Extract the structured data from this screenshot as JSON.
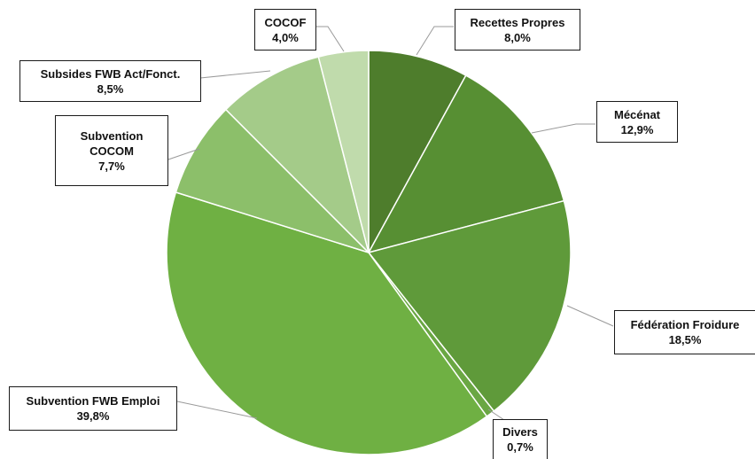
{
  "chart_data": {
    "type": "pie",
    "title": "",
    "start_angle_deg": 0,
    "direction": "clockwise",
    "slices": [
      {
        "label": "Recettes Propres",
        "value": 8.0,
        "value_text": "8,0%",
        "color": "#4e7d2c"
      },
      {
        "label": "Mécénat",
        "value": 12.9,
        "value_text": "12,9%",
        "color": "#578f33"
      },
      {
        "label": "Fédération Froidure",
        "value": 18.5,
        "value_text": "18,5%",
        "color": "#5f9a3a"
      },
      {
        "label": "Divers",
        "value": 0.7,
        "value_text": "0,7%",
        "color": "#6aa743"
      },
      {
        "label": "Subvention FWB Emploi",
        "value": 39.8,
        "value_text": "39,8%",
        "color": "#6fb043"
      },
      {
        "label": "Subvention COCOM",
        "value": 7.7,
        "value_text": "7,7%",
        "color": "#8cbf6a"
      },
      {
        "label": "Subsides FWB Act/Fonct.",
        "value": 8.5,
        "value_text": "8,5%",
        "color": "#a4cb89"
      },
      {
        "label": "COCOF",
        "value": 4.0,
        "value_text": "4,0%",
        "color": "#c0dbac"
      }
    ]
  }
}
